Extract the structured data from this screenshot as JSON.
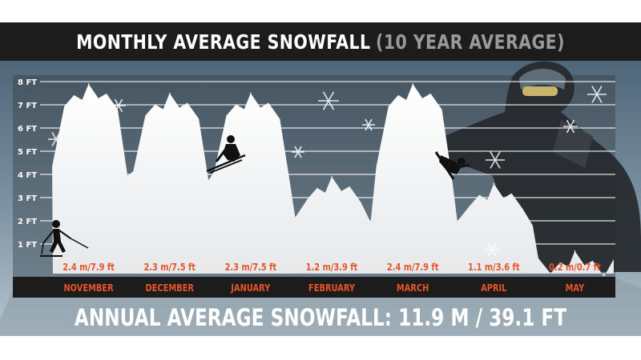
{
  "title": "MONTHLY AVERAGE SNOWFALL",
  "subtitle": "(10 YEAR AVERAGE)",
  "footer": "ANNUAL AVERAGE SNOWFALL: 11.9 M / 39.1 FT",
  "colors": {
    "band": "#1c1c1c",
    "month_label": "#e8542a",
    "value_label": "#e8542a",
    "snow": "#f4f4f4",
    "grid": "#ffffff"
  },
  "chart_data": {
    "type": "area",
    "title": "MONTHLY AVERAGE SNOWFALL (10 YEAR AVERAGE)",
    "y_unit": "ft",
    "ylim": [
      0,
      8
    ],
    "y_ticks": [
      "1 FT",
      "2 FT",
      "3 FT",
      "4 FT",
      "5 FT",
      "6 FT",
      "7 FT",
      "8 FT"
    ],
    "grid": true,
    "categories": [
      "NOVEMBER",
      "DECEMBER",
      "JANUARY",
      "FEBRUARY",
      "MARCH",
      "APRIL",
      "MAY"
    ],
    "values_ft": [
      7.9,
      7.5,
      7.5,
      3.9,
      7.9,
      3.6,
      0.7
    ],
    "values_m": [
      2.4,
      2.3,
      2.3,
      1.2,
      2.4,
      1.1,
      0.2
    ],
    "value_labels": [
      "2.4 m/7.9 ft",
      "2.3 m/7.5 ft",
      "2.3 m/7.5 ft",
      "1.2 m/3.9 ft",
      "2.4 m/7.9 ft",
      "1.1 m/3.6 ft",
      "0.2 m/0.7 ft"
    ]
  },
  "icons": [
    "skier-classic-icon",
    "skier-downhill-icon",
    "snowboarder-jump-icon",
    "snowboarder-portrait",
    "snowflake-icon"
  ]
}
